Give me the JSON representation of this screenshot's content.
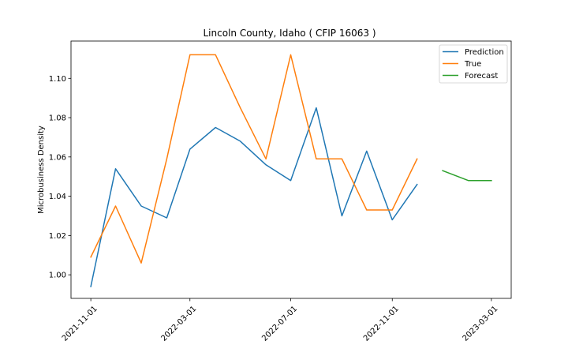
{
  "chart_data": {
    "type": "line",
    "title": "Lincoln County, Idaho ( CFIP 16063 )",
    "xlabel": "",
    "ylabel": "Microbusiness Density",
    "ylim": [
      0.988,
      1.119
    ],
    "xlim": [
      "2021-10-08",
      "2023-03-25"
    ],
    "x_ticks": [
      "2021-11-01",
      "2022-03-01",
      "2022-07-01",
      "2022-11-01",
      "2023-03-01"
    ],
    "y_ticks": [
      1.0,
      1.02,
      1.04,
      1.06,
      1.08,
      1.1
    ],
    "y_tick_labels": [
      "1.00",
      "1.02",
      "1.04",
      "1.06",
      "1.08",
      "1.10"
    ],
    "grid": false,
    "legend_position": "top-right",
    "series": [
      {
        "name": "Prediction",
        "color": "#1f77b4",
        "x": [
          "2021-11-01",
          "2021-12-01",
          "2022-01-01",
          "2022-02-01",
          "2022-03-01",
          "2022-04-01",
          "2022-05-01",
          "2022-06-01",
          "2022-07-01",
          "2022-08-01",
          "2022-09-01",
          "2022-10-01",
          "2022-11-01",
          "2022-12-01"
        ],
        "y": [
          0.994,
          1.054,
          1.035,
          1.029,
          1.064,
          1.075,
          1.068,
          1.056,
          1.048,
          1.085,
          1.03,
          1.063,
          1.028,
          1.046
        ]
      },
      {
        "name": "True",
        "color": "#ff7f0e",
        "x": [
          "2021-11-01",
          "2021-12-01",
          "2022-01-01",
          "2022-02-01",
          "2022-03-01",
          "2022-04-01",
          "2022-05-01",
          "2022-06-01",
          "2022-07-01",
          "2022-08-01",
          "2022-09-01",
          "2022-10-01",
          "2022-11-01",
          "2022-12-01"
        ],
        "y": [
          1.009,
          1.035,
          1.006,
          1.059,
          1.112,
          1.112,
          1.085,
          1.059,
          1.112,
          1.059,
          1.059,
          1.033,
          1.033,
          1.059
        ]
      },
      {
        "name": "Forecast",
        "color": "#2ca02c",
        "x": [
          "2023-01-01",
          "2023-02-01",
          "2023-03-01"
        ],
        "y": [
          1.053,
          1.048,
          1.048
        ]
      }
    ]
  }
}
